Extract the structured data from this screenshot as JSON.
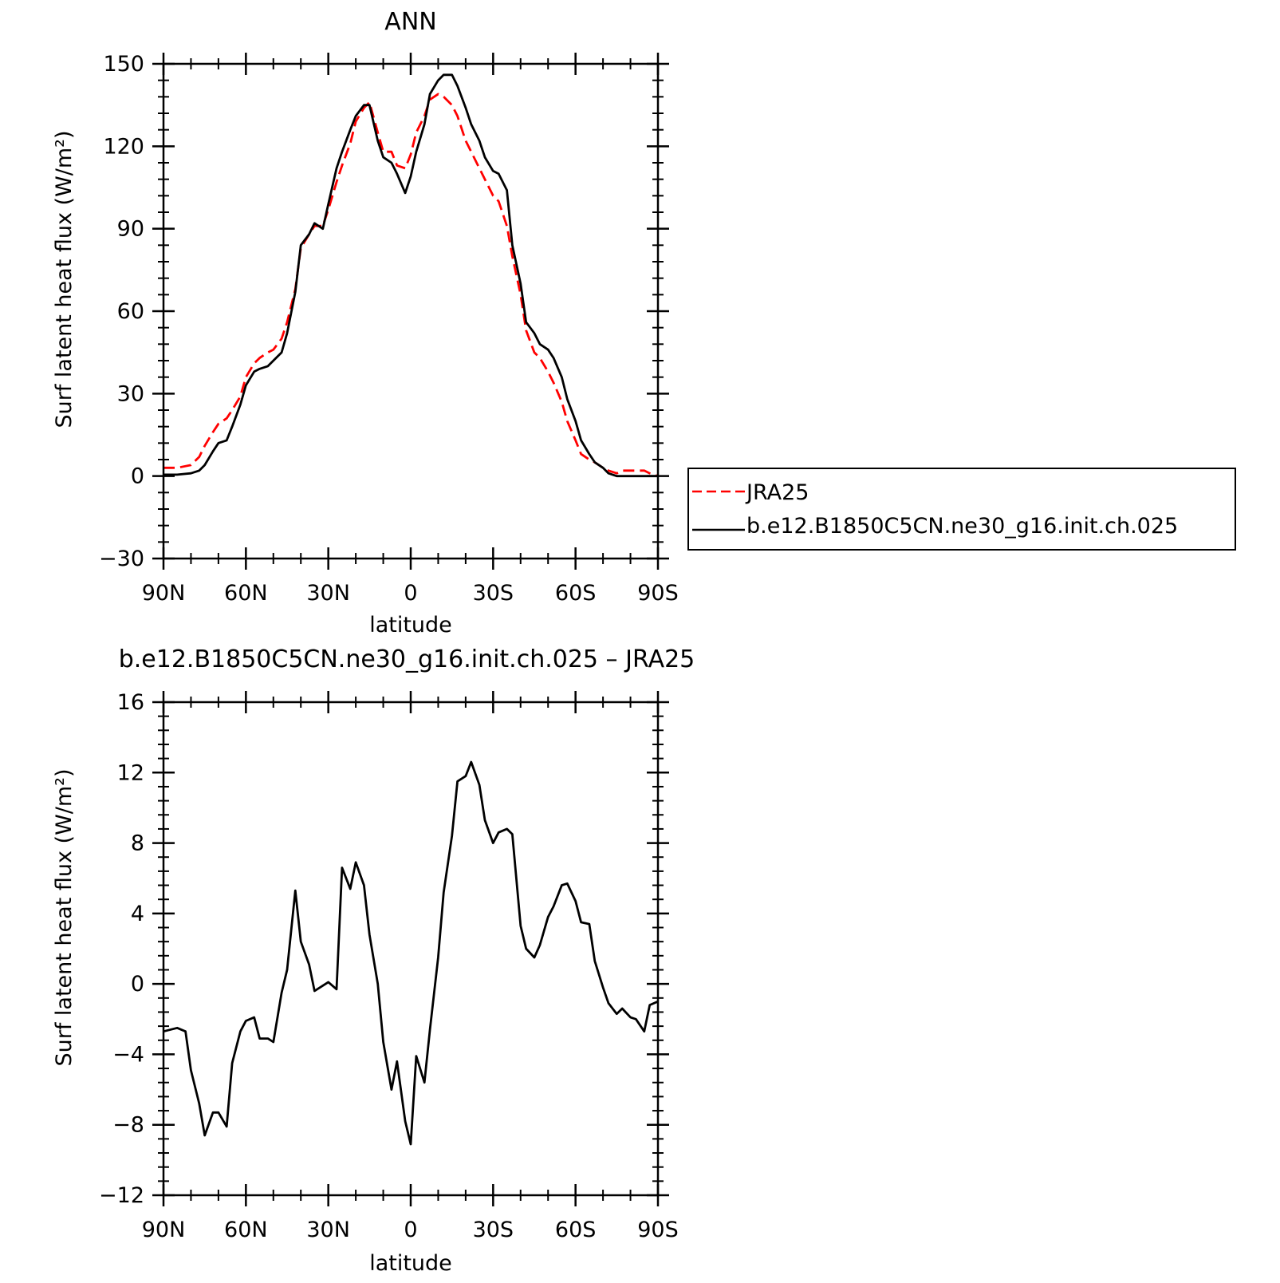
{
  "chart_data": [
    {
      "type": "line",
      "title": "ANN",
      "xlabel": "latitude",
      "ylabel": "Surf latent heat flux (W/m²)",
      "ylim": [
        -30,
        150
      ],
      "yticks": [
        -30,
        0,
        30,
        60,
        90,
        120,
        150
      ],
      "xlim": [
        90,
        -90
      ],
      "xticks": [
        90,
        60,
        30,
        0,
        -30,
        -60,
        -90
      ],
      "xtick_labels": [
        "90N",
        "60N",
        "30N",
        "0",
        "30S",
        "60S",
        "90S"
      ],
      "grid": false,
      "legend_position": "right",
      "series": [
        {
          "name": "JRA25",
          "color": "#ff0000",
          "dash": "dashed",
          "x": [
            90,
            85,
            80,
            77,
            75,
            72,
            70,
            67,
            65,
            62,
            60,
            57,
            55,
            52,
            50,
            47,
            45,
            42,
            40,
            37,
            35,
            32,
            30,
            27,
            25,
            22,
            20,
            17,
            15,
            12,
            10,
            7,
            5,
            2,
            0,
            -2,
            -5,
            -7,
            -10,
            -12,
            -15,
            -17,
            -20,
            -22,
            -25,
            -27,
            -30,
            -32,
            -35,
            -37,
            -40,
            -42,
            -45,
            -47,
            -50,
            -52,
            -55,
            -57,
            -60,
            -62,
            -65,
            -67,
            -70,
            -72,
            -75,
            -77,
            -80,
            -82,
            -85,
            -87,
            -90
          ],
          "y": [
            3,
            3,
            4,
            7,
            11,
            16,
            19,
            21,
            24,
            29,
            36,
            41,
            43,
            45,
            46,
            50,
            56,
            68,
            83,
            88,
            91,
            91,
            97,
            107,
            113,
            121,
            129,
            134,
            136,
            125,
            118,
            118,
            113,
            112,
            117,
            125,
            131,
            137,
            139,
            138,
            135,
            131,
            122,
            118,
            112,
            108,
            102,
            100,
            91,
            80,
            66,
            53,
            45,
            43,
            38,
            34,
            27,
            20,
            13,
            8,
            6,
            5,
            3,
            2,
            1,
            2,
            2,
            2,
            2,
            1,
            0
          ]
        },
        {
          "name": "b.e12.B1850C5CN.ne30_g16.init.ch.025",
          "color": "#000000",
          "dash": "solid",
          "x": [
            90,
            85,
            80,
            77,
            75,
            72,
            70,
            67,
            65,
            62,
            60,
            57,
            55,
            52,
            50,
            47,
            45,
            42,
            40,
            37,
            35,
            32,
            30,
            27,
            25,
            22,
            20,
            17,
            15,
            12,
            10,
            7,
            5,
            2,
            0,
            -2,
            -5,
            -7,
            -10,
            -12,
            -15,
            -17,
            -20,
            -22,
            -25,
            -27,
            -30,
            -32,
            -35,
            -37,
            -40,
            -42,
            -45,
            -47,
            -50,
            -52,
            -55,
            -57,
            -60,
            -62,
            -65,
            -67,
            -70,
            -72,
            -75,
            -77,
            -80,
            -82,
            -85,
            -87,
            -90
          ],
          "y": [
            0.5,
            0.5,
            1,
            2,
            4,
            9,
            12,
            13,
            18,
            26,
            33,
            38,
            39,
            40,
            42,
            45,
            52,
            67,
            84,
            88,
            92,
            90,
            99,
            112,
            118,
            126,
            131,
            135,
            135,
            122,
            116,
            114,
            110,
            103,
            109,
            118,
            128,
            139,
            144,
            146,
            146,
            142,
            134,
            128,
            122,
            116,
            111,
            110,
            104,
            84,
            70,
            56,
            52,
            48,
            46,
            43,
            36,
            28,
            20,
            13,
            8,
            5,
            3,
            1,
            0,
            0,
            0,
            0,
            0,
            0,
            0
          ]
        }
      ]
    },
    {
      "type": "line",
      "title": "b.e12.B1850C5CN.ne30_g16.init.ch.025 – JRA25",
      "xlabel": "latitude",
      "ylabel": "Surf latent heat flux (W/m²)",
      "ylim": [
        -12,
        16
      ],
      "yticks": [
        -12,
        -8,
        -4,
        0,
        4,
        8,
        12,
        16
      ],
      "xlim": [
        90,
        -90
      ],
      "xticks": [
        90,
        60,
        30,
        0,
        -30,
        -60,
        -90
      ],
      "xtick_labels": [
        "90N",
        "60N",
        "30N",
        "0",
        "30S",
        "60S",
        "90S"
      ],
      "grid": false,
      "series": [
        {
          "color": "#000000",
          "dash": "solid",
          "x": [
            90,
            85,
            82,
            80,
            77,
            75,
            72,
            70,
            67,
            65,
            62,
            60,
            57,
            55,
            52,
            50,
            47,
            45,
            42,
            40,
            37,
            35,
            32,
            30,
            27,
            25,
            22,
            20,
            17,
            15,
            12,
            10,
            7,
            5,
            2,
            0,
            -2,
            -5,
            -7,
            -10,
            -12,
            -15,
            -17,
            -20,
            -22,
            -25,
            -27,
            -30,
            -32,
            -35,
            -37,
            -40,
            -42,
            -45,
            -47,
            -50,
            -52,
            -55,
            -57,
            -60,
            -62,
            -65,
            -67,
            -70,
            -72,
            -75,
            -77,
            -80,
            -82,
            -85,
            -87,
            -90
          ],
          "y": [
            -2.7,
            -2.5,
            -2.7,
            -4.9,
            -6.8,
            -8.6,
            -7.3,
            -7.3,
            -8.1,
            -4.5,
            -2.7,
            -2.1,
            -1.9,
            -3.1,
            -3.1,
            -3.3,
            -0.5,
            0.8,
            5.3,
            2.4,
            1.1,
            -0.4,
            -0.1,
            0.1,
            -0.3,
            6.6,
            5.4,
            6.9,
            5.6,
            2.8,
            0.0,
            -3.3,
            -6.0,
            -4.4,
            -7.8,
            -9.1,
            -4.1,
            -5.6,
            -2.6,
            1.5,
            5.2,
            8.4,
            11.5,
            11.8,
            12.6,
            11.3,
            9.3,
            8.0,
            8.6,
            8.8,
            8.5,
            3.3,
            2.0,
            1.5,
            2.2,
            3.8,
            4.4,
            5.6,
            5.7,
            4.7,
            3.5,
            3.4,
            1.3,
            -0.2,
            -1.1,
            -1.7,
            -1.4,
            -1.9,
            -2.0,
            -2.7,
            -1.2,
            -1.0
          ]
        }
      ]
    }
  ]
}
